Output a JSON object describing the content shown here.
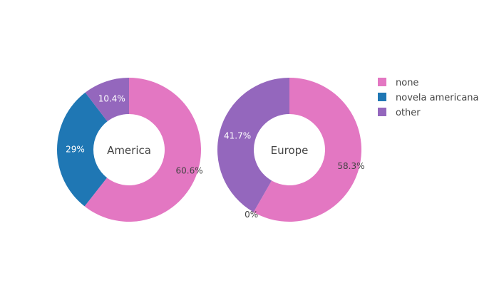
{
  "chart_data": {
    "type": "pie",
    "variant": "donut",
    "legend_placement": "top-right",
    "categories": [
      "none",
      "novela americana",
      "other"
    ],
    "colors": {
      "none": "#e377c2",
      "novela americana": "#1f77b4",
      "other": "#9467bd"
    },
    "charts": [
      {
        "center_label": "America",
        "slices": [
          {
            "category": "none",
            "percent": 60.6,
            "label": "60.6%"
          },
          {
            "category": "novela americana",
            "percent": 29.0,
            "label": "29%"
          },
          {
            "category": "other",
            "percent": 10.4,
            "label": "10.4%"
          }
        ]
      },
      {
        "center_label": "Europe",
        "slices": [
          {
            "category": "none",
            "percent": 58.3,
            "label": "58.3%"
          },
          {
            "category": "novela americana",
            "percent": 0.0,
            "label": "0%"
          },
          {
            "category": "other",
            "percent": 41.7,
            "label": "41.7%"
          }
        ]
      }
    ],
    "legend": [
      "none",
      "novela americana",
      "other"
    ]
  }
}
